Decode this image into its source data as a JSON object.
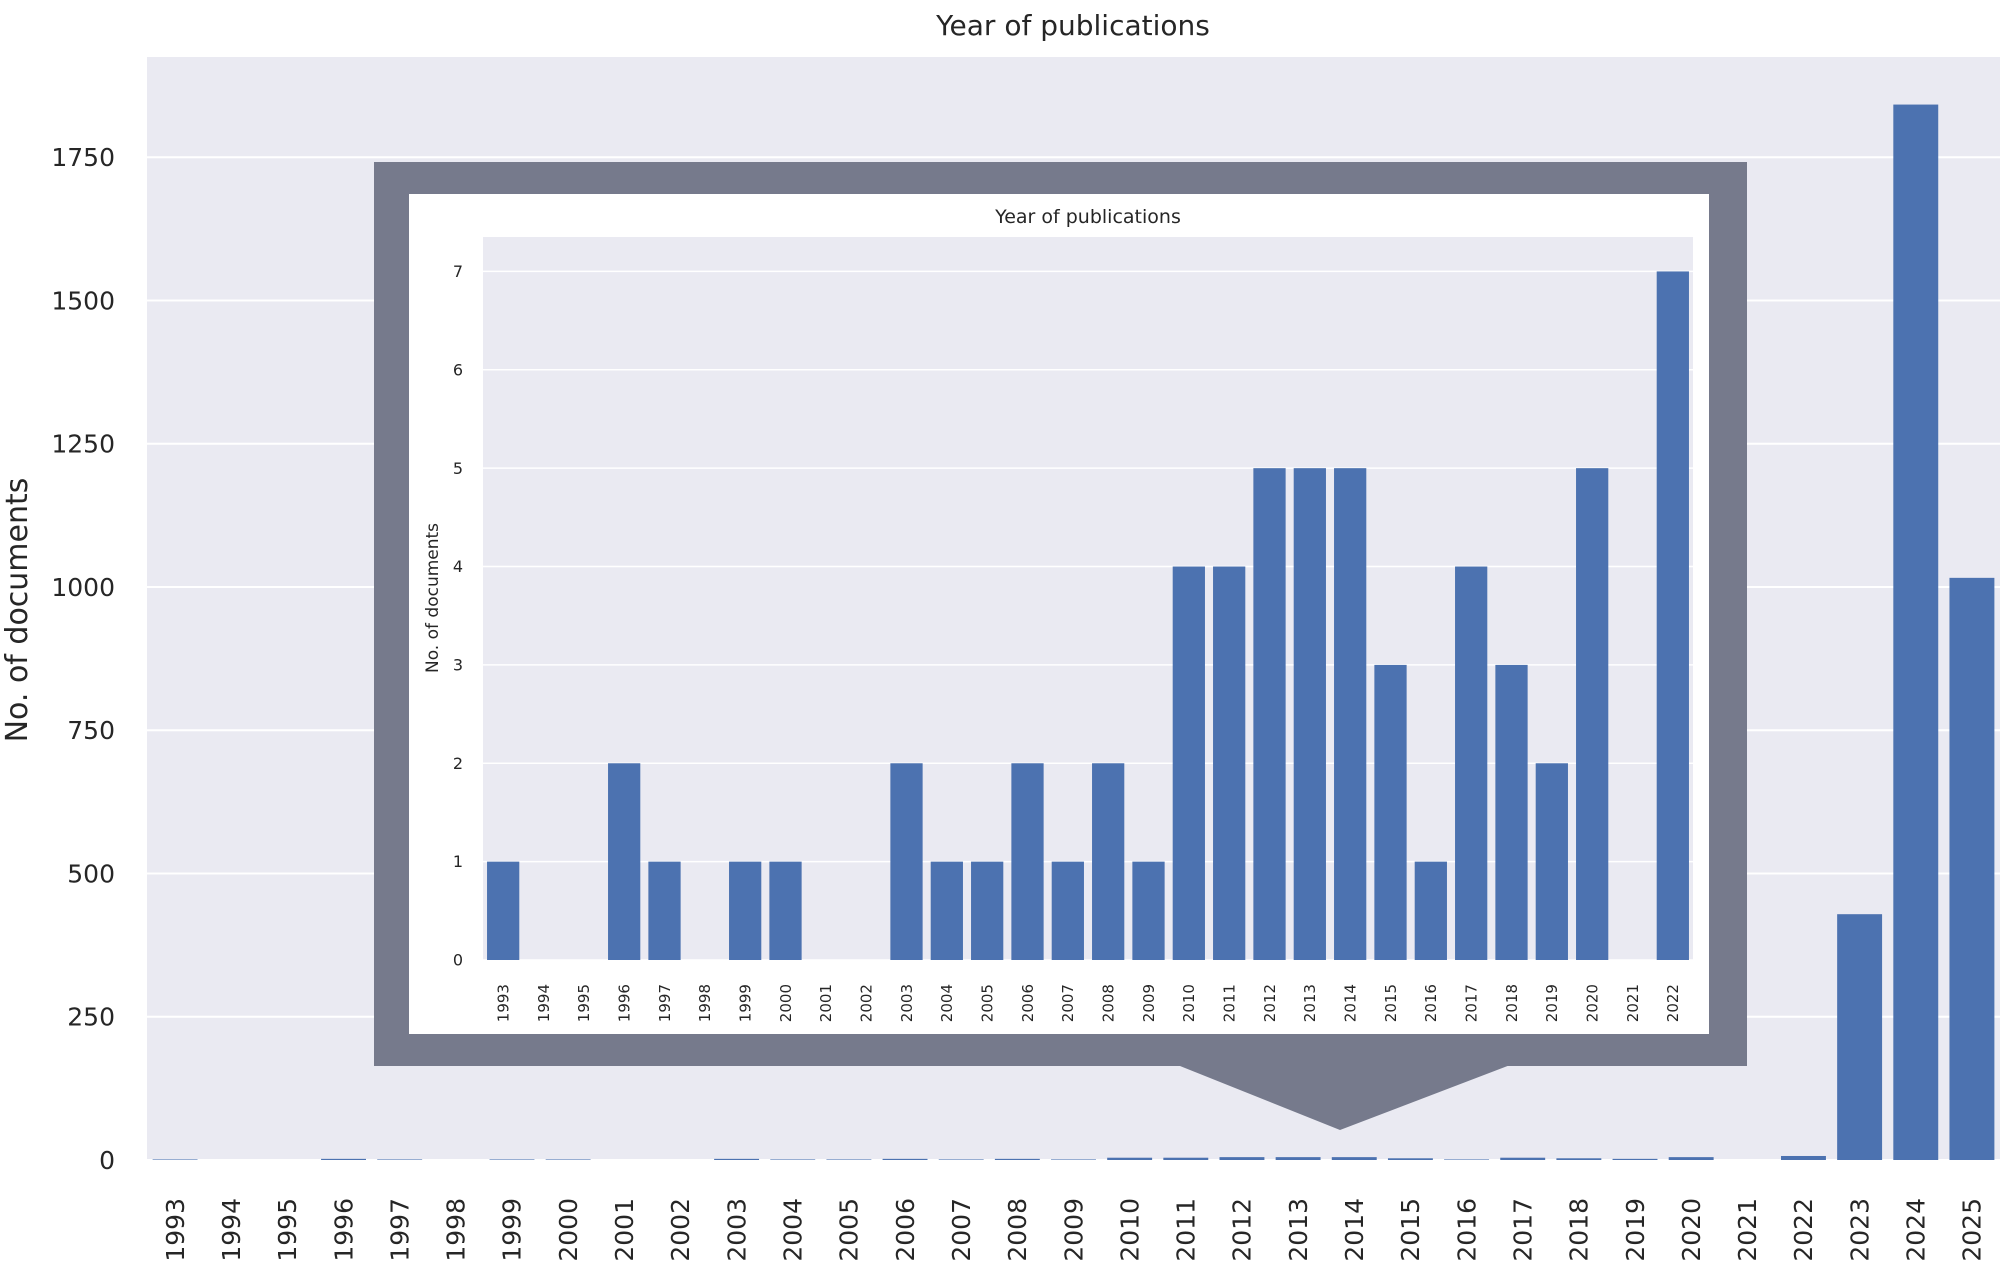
{
  "chart_data": [
    {
      "id": "main",
      "type": "bar",
      "title": "Year of publications",
      "xlabel": "",
      "ylabel": "No. of documents",
      "categories": [
        "1993",
        "1994",
        "1995",
        "1996",
        "1997",
        "1998",
        "1999",
        "2000",
        "2001",
        "2002",
        "2003",
        "2004",
        "2005",
        "2006",
        "2007",
        "2008",
        "2009",
        "2010",
        "2011",
        "2012",
        "2013",
        "2014",
        "2015",
        "2016",
        "2017",
        "2018",
        "2019",
        "2020",
        "2021",
        "2022",
        "2023",
        "2024",
        "2025"
      ],
      "values": [
        1,
        0,
        0,
        2,
        1,
        0,
        1,
        1,
        0,
        0,
        2,
        1,
        1,
        2,
        1,
        2,
        1,
        4,
        4,
        5,
        5,
        5,
        3,
        1,
        4,
        3,
        2,
        5,
        0,
        7,
        429,
        1842,
        1016
      ],
      "yticks": [
        0,
        250,
        500,
        750,
        1000,
        1250,
        1500,
        1750
      ],
      "ylim": [
        0,
        1925
      ],
      "grid": true,
      "bar_color": "#4c72b0",
      "background_color": "#eaeaf2"
    },
    {
      "id": "inset",
      "type": "bar",
      "title": "Year of publications",
      "xlabel": "",
      "ylabel": "No. of documents",
      "categories": [
        "1993",
        "1994",
        "1995",
        "1996",
        "1997",
        "1998",
        "1999",
        "2000",
        "2001",
        "2002",
        "2003",
        "2004",
        "2005",
        "2006",
        "2007",
        "2008",
        "2009",
        "2010",
        "2011",
        "2012",
        "2013",
        "2014",
        "2015",
        "2016",
        "2017",
        "2018",
        "2019",
        "2020",
        "2021",
        "2022"
      ],
      "values": [
        1,
        0,
        0,
        2,
        1,
        0,
        1,
        1,
        0,
        0,
        2,
        1,
        1,
        2,
        1,
        2,
        1,
        4,
        4,
        5,
        5,
        5,
        3,
        1,
        4,
        3,
        2,
        5,
        0,
        7
      ],
      "yticks": [
        0,
        1,
        2,
        3,
        4,
        5,
        6,
        7
      ],
      "ylim": [
        0,
        7.35
      ],
      "grid": true,
      "bar_color": "#4c72b0",
      "background_color": "#eaeaf2"
    }
  ],
  "callout": {
    "frame_color": "#767a8c",
    "description": "magnified view of years 1993–2022"
  }
}
